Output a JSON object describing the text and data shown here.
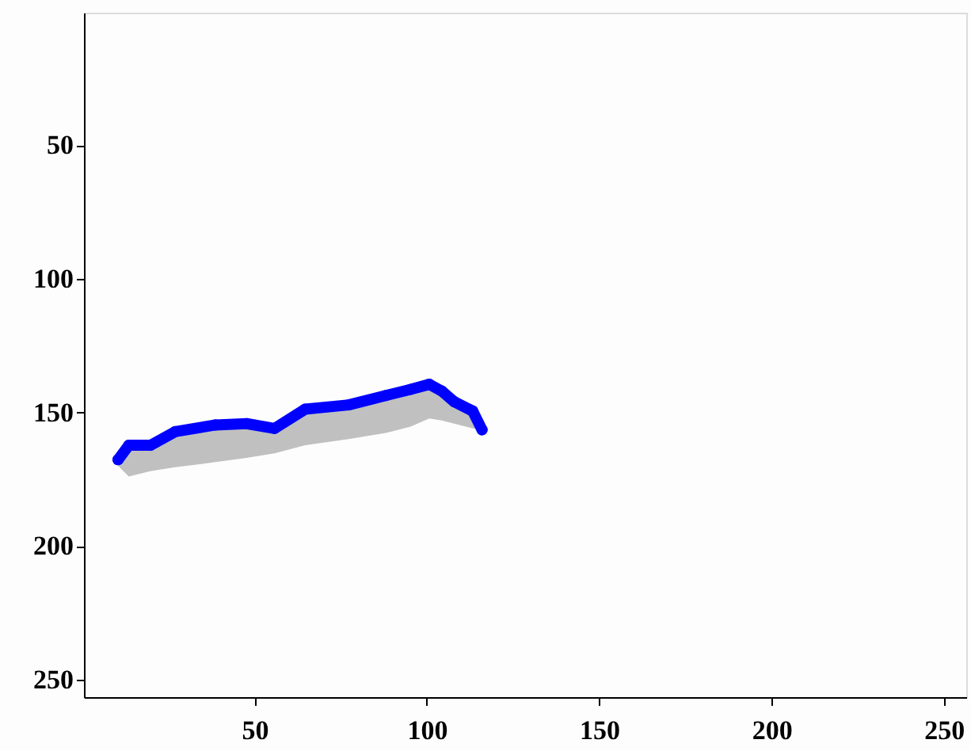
{
  "chart_data": {
    "type": "line",
    "x": [
      10.4,
      13.5,
      19.8,
      27,
      38.7,
      47.7,
      55.8,
      64.7,
      77.3,
      88.1,
      95.3,
      100.7,
      104.3,
      107.9,
      113.3,
      116
    ],
    "series": [
      {
        "color": "#0000ff",
        "values": [
          167.7,
          162.3,
          162.3,
          157.2,
          154.7,
          154.2,
          156,
          148.8,
          147.2,
          143.7,
          141.4,
          139.5,
          142,
          146,
          149.5,
          156.5
        ],
        "lower": [
          170,
          174,
          172,
          170.5,
          168.6,
          167,
          165.3,
          162.3,
          160,
          157.7,
          155.3,
          152.3,
          153,
          154.2,
          156,
          156.5
        ],
        "upper": [
          167.7,
          162.3,
          162.3,
          157.2,
          154.7,
          154.2,
          156,
          148.8,
          147.2,
          143.7,
          141.4,
          139.5,
          142,
          146,
          149.5,
          156.5
        ]
      }
    ],
    "xlim": [
      0.5,
      256.5
    ],
    "ylim": [
      256.5,
      0.5
    ],
    "xticks": [
      50,
      100,
      150,
      200,
      250
    ],
    "yticks": [
      50,
      100,
      150,
      200,
      250
    ],
    "line_style": "solid",
    "marker": "circle"
  }
}
